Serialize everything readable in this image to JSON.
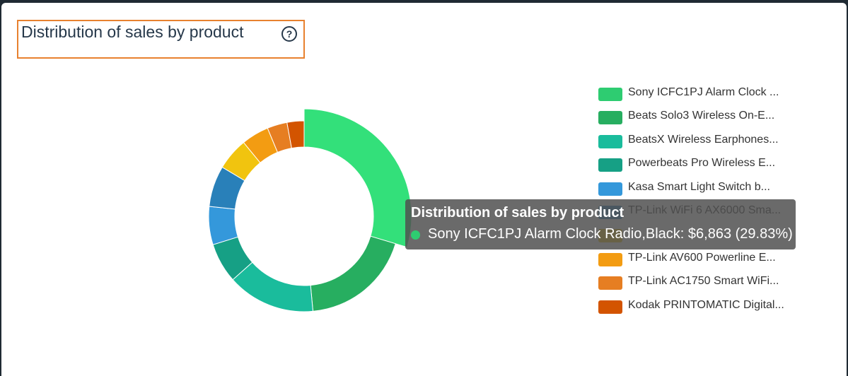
{
  "header": {
    "title": "Distribution of sales by product",
    "help_icon": "question-circle-icon"
  },
  "chart_data": {
    "type": "pie",
    "variant": "donut",
    "title": "Distribution of sales by product",
    "categories": [
      "Sony ICFC1PJ Alarm Clock Radio,Black",
      "Beats Solo3 Wireless On-E...",
      "BeatsX Wireless Earphones...",
      "Powerbeats Pro Wireless E...",
      "Kasa Smart Light Switch b...",
      "TP-Link WiFi 6 AX6000 Sma...",
      "",
      "TP-Link AV600 Powerline E...",
      "TP-Link AC1750 Smart WiFi...",
      "Kodak PRINTOMATIC Digital..."
    ],
    "values": [
      29.83,
      19.0,
      15.0,
      6.8,
      6.5,
      7.0,
      5.5,
      4.7,
      3.4,
      2.9
    ],
    "colors": [
      "#2ecc71",
      "#27ae60",
      "#1abc9c",
      "#16a085",
      "#3498db",
      "#2980b9",
      "#f1c40f",
      "#f39c12",
      "#e67e22",
      "#d35400"
    ],
    "highlighted_index": 0,
    "legend_position": "right"
  },
  "legend": {
    "items": [
      {
        "label": "Sony ICFC1PJ Alarm Clock ...",
        "color": "#2ecc71"
      },
      {
        "label": "Beats Solo3 Wireless On-E...",
        "color": "#27ae60"
      },
      {
        "label": "BeatsX Wireless Earphones...",
        "color": "#1abc9c"
      },
      {
        "label": "Powerbeats Pro Wireless E...",
        "color": "#16a085"
      },
      {
        "label": "Kasa Smart Light Switch b...",
        "color": "#3498db"
      },
      {
        "label": "TP-Link WiFi 6 AX6000 Sma...",
        "color": "#2980b9"
      },
      {
        "label": "",
        "color": "#f1c40f"
      },
      {
        "label": "TP-Link AV600 Powerline E...",
        "color": "#f39c12"
      },
      {
        "label": "TP-Link AC1750 Smart WiFi...",
        "color": "#e67e22"
      },
      {
        "label": "Kodak PRINTOMATIC Digital...",
        "color": "#d35400"
      }
    ]
  },
  "tooltip": {
    "title": "Distribution of sales by product",
    "text": "Sony ICFC1PJ Alarm Clock Radio,Black: $6,863 (29.83%)",
    "dot_color": "#2ecc71"
  }
}
